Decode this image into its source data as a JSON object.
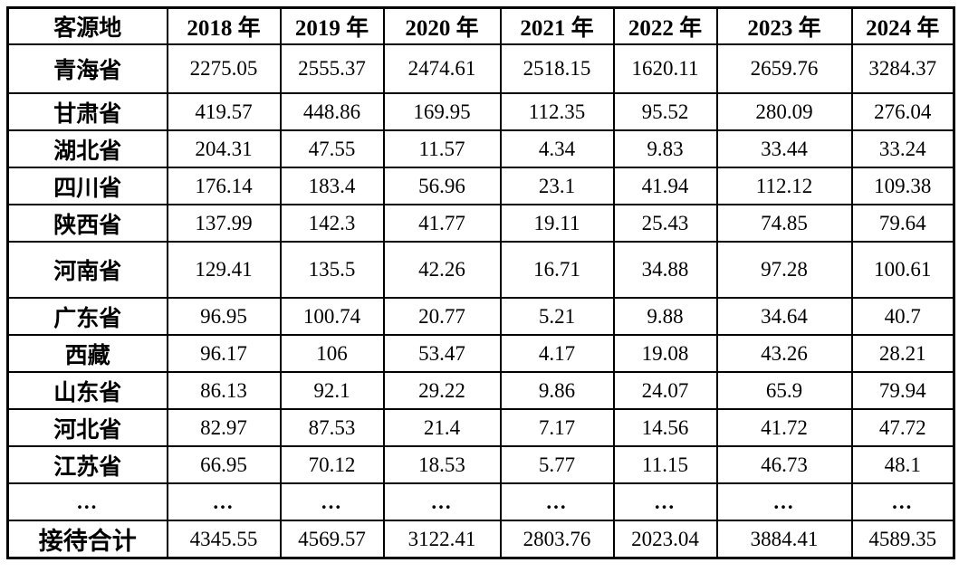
{
  "table": {
    "name": "tourist-source-by-year",
    "header": [
      "客源地",
      "2018 年",
      "2019 年",
      "2020 年",
      "2021 年",
      "2022 年",
      "2023 年",
      "2024 年"
    ],
    "rows": [
      {
        "label": "青海省",
        "values": [
          "2275.05",
          "2555.37",
          "2474.61",
          "2518.15",
          "1620.11",
          "2659.76",
          "3284.37"
        ]
      },
      {
        "label": "甘肃省",
        "values": [
          "419.57",
          "448.86",
          "169.95",
          "112.35",
          "95.52",
          "280.09",
          "276.04"
        ]
      },
      {
        "label": "湖北省",
        "values": [
          "204.31",
          "47.55",
          "11.57",
          "4.34",
          "9.83",
          "33.44",
          "33.24"
        ]
      },
      {
        "label": "四川省",
        "values": [
          "176.14",
          "183.4",
          "56.96",
          "23.1",
          "41.94",
          "112.12",
          "109.38"
        ]
      },
      {
        "label": "陕西省",
        "values": [
          "137.99",
          "142.3",
          "41.77",
          "19.11",
          "25.43",
          "74.85",
          "79.64"
        ]
      },
      {
        "label": "河南省",
        "values": [
          "129.41",
          "135.5",
          "42.26",
          "16.71",
          "34.88",
          "97.28",
          "100.61"
        ]
      },
      {
        "label": "广东省",
        "values": [
          "96.95",
          "100.74",
          "20.77",
          "5.21",
          "9.88",
          "34.64",
          "40.7"
        ]
      },
      {
        "label": "西藏",
        "values": [
          "96.17",
          "106",
          "53.47",
          "4.17",
          "19.08",
          "43.26",
          "28.21"
        ]
      },
      {
        "label": "山东省",
        "values": [
          "86.13",
          "92.1",
          "29.22",
          "9.86",
          "24.07",
          "65.9",
          "79.94"
        ]
      },
      {
        "label": "河北省",
        "values": [
          "82.97",
          "87.53",
          "21.4",
          "7.17",
          "14.56",
          "41.72",
          "47.72"
        ]
      },
      {
        "label": "江苏省",
        "values": [
          "66.95",
          "70.12",
          "18.53",
          "5.77",
          "11.15",
          "46.73",
          "48.1"
        ]
      },
      {
        "label": "...",
        "values": [
          "...",
          "...",
          "...",
          "...",
          "...",
          "...",
          "..."
        ]
      },
      {
        "label": "接待合计",
        "values": [
          "4345.55",
          "4569.57",
          "3122.41",
          "2803.76",
          "2023.04",
          "3884.41",
          "4589.35"
        ]
      }
    ],
    "colors": {
      "border": "#000000",
      "text": "#000000",
      "background": "#ffffff"
    }
  }
}
